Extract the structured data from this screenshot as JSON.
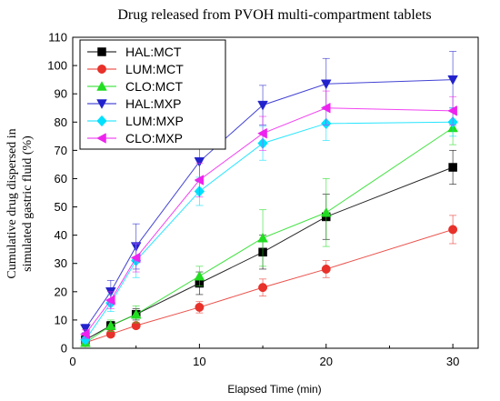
{
  "chart_data": {
    "type": "line",
    "title": "Drug released from PVOH multi-compartment tablets",
    "xlabel": "Elapsed Time (min)",
    "ylabel_lines": [
      "Cumulative drug dispersed in",
      "simulated gastric fluid (%)"
    ],
    "xlim": [
      0,
      32
    ],
    "ylim": [
      0,
      110
    ],
    "xticks": [
      0,
      10,
      20,
      30
    ],
    "yticks": [
      0,
      10,
      20,
      30,
      40,
      50,
      60,
      70,
      80,
      90,
      100,
      110
    ],
    "x": [
      1,
      3,
      5,
      10,
      15,
      20,
      30
    ],
    "grid": false,
    "legend_position": "top-left",
    "series": [
      {
        "name": "HAL:MCT",
        "color": "#000000",
        "marker": "square",
        "values": [
          3,
          8,
          12,
          23,
          34,
          46.5,
          64
        ],
        "errors": [
          1,
          1.5,
          2,
          4,
          6,
          8,
          6
        ]
      },
      {
        "name": "LUM:MCT",
        "color": "#e8312a",
        "marker": "circle",
        "values": [
          2,
          5,
          8,
          14.5,
          21.5,
          28,
          42
        ],
        "errors": [
          0.5,
          1,
          1,
          2,
          3,
          3,
          5
        ]
      },
      {
        "name": "CLO:MCT",
        "color": "#22dd22",
        "marker": "triangle-up",
        "values": [
          2,
          8,
          12,
          25.5,
          39,
          48,
          78
        ],
        "errors": [
          1,
          2,
          3,
          3.5,
          10,
          12,
          6
        ]
      },
      {
        "name": "HAL:MXP",
        "color": "#2222cc",
        "marker": "triangle-down",
        "values": [
          7,
          20,
          36,
          66,
          86,
          93.5,
          95
        ],
        "errors": [
          1.5,
          4,
          8,
          7,
          7,
          9,
          10
        ]
      },
      {
        "name": "LUM:MXP",
        "color": "#00e0ff",
        "marker": "diamond",
        "values": [
          3,
          16,
          31,
          55.5,
          72.5,
          79.5,
          80
        ],
        "errors": [
          1,
          3,
          6,
          5,
          6,
          6,
          5
        ]
      },
      {
        "name": "CLO:MXP",
        "color": "#ee22ee",
        "marker": "triangle-left",
        "values": [
          5,
          17,
          32,
          59.5,
          76,
          85,
          84
        ],
        "errors": [
          1.5,
          3,
          5,
          6,
          6,
          6,
          5
        ]
      }
    ]
  }
}
